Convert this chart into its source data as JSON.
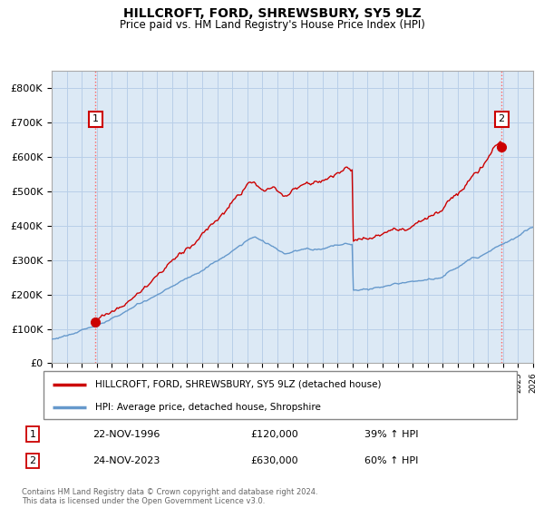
{
  "title": "HILLCROFT, FORD, SHREWSBURY, SY5 9LZ",
  "subtitle": "Price paid vs. HM Land Registry's House Price Index (HPI)",
  "ylim": [
    0,
    850000
  ],
  "xlim_start": 1994.0,
  "xlim_end": 2026.0,
  "bg_color": "#dce9f5",
  "grid_color": "#b8cfe8",
  "red_line_color": "#cc0000",
  "blue_line_color": "#6699cc",
  "point1_x": 1996.9,
  "point1_y": 120000,
  "point2_x": 2023.9,
  "point2_y": 630000,
  "point1_label": "22-NOV-1996",
  "point1_price": "£120,000",
  "point1_hpi": "39% ↑ HPI",
  "point2_label": "24-NOV-2023",
  "point2_price": "£630,000",
  "point2_hpi": "60% ↑ HPI",
  "legend_line1": "HILLCROFT, FORD, SHREWSBURY, SY5 9LZ (detached house)",
  "legend_line2": "HPI: Average price, detached house, Shropshire",
  "footer": "Contains HM Land Registry data © Crown copyright and database right 2024.\nThis data is licensed under the Open Government Licence v3.0.",
  "ytick_labels": [
    "£0",
    "£100K",
    "£200K",
    "£300K",
    "£400K",
    "£500K",
    "£600K",
    "£700K",
    "£800K"
  ],
  "ytick_values": [
    0,
    100000,
    200000,
    300000,
    400000,
    500000,
    600000,
    700000,
    800000
  ]
}
